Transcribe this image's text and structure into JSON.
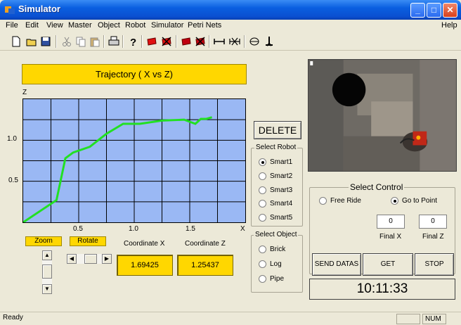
{
  "window": {
    "title": "Simulator",
    "controls": [
      "_",
      "□",
      "✕"
    ]
  },
  "menu": {
    "items": [
      {
        "label": "File"
      },
      {
        "label": "Edit"
      },
      {
        "label": "View"
      },
      {
        "label": "Master"
      },
      {
        "label": "Object"
      },
      {
        "label": "Robot"
      },
      {
        "label": "Simulator"
      },
      {
        "label": "Petri Nets"
      }
    ],
    "help": "Help"
  },
  "toolbar": {
    "icons": [
      "new-icon",
      "open-icon",
      "save-icon",
      "cut-icon",
      "copy-icon",
      "paste-icon",
      "print-icon",
      "help-icon",
      "red-block-icon",
      "red-x-block-icon",
      "red-block-2-icon",
      "red-x-block-2-icon",
      "link-icon",
      "unlink-icon",
      "view-icon",
      "robot-icon"
    ]
  },
  "trajectory": {
    "title": "Trajectory ( X vs Z)",
    "z_axis_label": "Z",
    "x_axis_label": "X",
    "y_ticks": [
      "1.0",
      "0.5"
    ],
    "x_ticks": [
      "0.5",
      "1.0",
      "1.5"
    ],
    "line_color": "#22e022"
  },
  "chart_data": {
    "type": "line",
    "xlabel": "X",
    "ylabel": "Z",
    "xlim": [
      0,
      2.0
    ],
    "ylim": [
      0,
      1.5
    ],
    "series": [
      {
        "x": [
          0.0,
          0.3,
          0.38,
          0.45,
          0.6,
          0.75,
          0.9,
          1.05,
          1.25,
          1.45,
          1.55,
          1.6,
          1.65,
          1.7
        ],
        "y": [
          0.0,
          0.27,
          0.78,
          0.85,
          0.92,
          1.08,
          1.2,
          1.2,
          1.24,
          1.25,
          1.2,
          1.26,
          1.26,
          1.28
        ]
      }
    ]
  },
  "controls": {
    "zoom_label": "Zoom",
    "rotate_label": "Rotate",
    "coordinate_x_label": "Coordinate X",
    "coordinate_z_label": "Coordinate Z",
    "coordinate_x_value": "1.69425",
    "coordinate_z_value": "1.25437",
    "delete_label": "DELETE"
  },
  "select_robot": {
    "title": "Select Robot",
    "options": [
      {
        "label": "Smart1",
        "checked": true
      },
      {
        "label": "Smart2",
        "checked": false
      },
      {
        "label": "Smart3",
        "checked": false
      },
      {
        "label": "Smart4",
        "checked": false
      },
      {
        "label": "Smart5",
        "checked": false
      }
    ]
  },
  "select_object": {
    "title": "Select Object",
    "options": [
      {
        "label": "Brick",
        "checked": false
      },
      {
        "label": "Log",
        "checked": false
      },
      {
        "label": "Pipe",
        "checked": false
      }
    ]
  },
  "select_control": {
    "title": "Select Control",
    "free_ride": "Free Ride",
    "go_to_point": "Go to Point",
    "final_x_value": "0",
    "final_z_value": "0",
    "final_x_label": "Final X",
    "final_z_label": "Final Z",
    "send_datas": "SEND DATAS",
    "get_position": "GET POSITION",
    "stop": "STOP",
    "clock": "10:11:33"
  },
  "status": {
    "text": "Ready",
    "num": "NUM"
  }
}
